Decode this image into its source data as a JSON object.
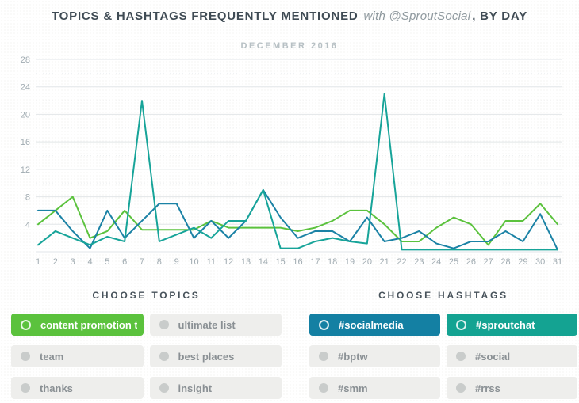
{
  "title": {
    "main": "TOPICS & HASHTAGS FREQUENTLY MENTIONED",
    "highlight": "with @SproutSocial",
    "suffix": ", BY DAY"
  },
  "subtitle": "DECEMBER 2016",
  "chart_data": {
    "type": "line",
    "title": "Topics & hashtags frequently mentioned with @SproutSocial, by day",
    "subtitle": "DECEMBER 2016",
    "x": [
      1,
      2,
      3,
      4,
      5,
      6,
      7,
      8,
      9,
      10,
      11,
      12,
      13,
      14,
      15,
      16,
      17,
      18,
      19,
      20,
      21,
      22,
      23,
      24,
      25,
      26,
      27,
      28,
      29,
      30,
      31
    ],
    "xlabel": "",
    "ylabel": "",
    "ylim": [
      0,
      28
    ],
    "yticks": [
      4,
      8,
      12,
      16,
      20,
      24,
      28
    ],
    "minor_gridlines_every": 2,
    "grid": true,
    "legend_position": "none",
    "series": [
      {
        "name": "content promotion t..",
        "color": "#5bc23d",
        "values": [
          4,
          6,
          8,
          2,
          3,
          6,
          3.2,
          3.2,
          3.2,
          3.2,
          4.5,
          3.5,
          3.5,
          3.5,
          3.5,
          3,
          3.5,
          4.5,
          6,
          6,
          4,
          1.5,
          1.5,
          3.5,
          5,
          4,
          1,
          4.5,
          4.5,
          7,
          4
        ]
      },
      {
        "name": "#socialmedia",
        "color": "#1b82a5",
        "values": [
          6,
          6,
          3,
          0.5,
          6,
          2,
          4.5,
          7,
          7,
          2,
          4.5,
          2,
          4.5,
          9,
          5,
          2,
          3,
          3,
          1.5,
          5,
          1.5,
          2,
          3,
          1.2,
          0.5,
          1.5,
          1.5,
          3,
          1.5,
          5.5,
          0.3
        ]
      },
      {
        "name": "#sproutchat",
        "color": "#17a499",
        "values": [
          1,
          3,
          2,
          1,
          2.2,
          1.5,
          22,
          1.5,
          2.5,
          3.5,
          2,
          4.5,
          4.5,
          9,
          0.5,
          0.5,
          1.5,
          2,
          1.5,
          1.2,
          23,
          0.3,
          0.3,
          0.3,
          0.3,
          0.3,
          0.3,
          0.3,
          0.3,
          0.3,
          0.3
        ]
      }
    ]
  },
  "topics": {
    "heading": "CHOOSE TOPICS",
    "buttons": [
      {
        "label": "content promotion t..",
        "active": true,
        "color": "#5bc23d"
      },
      {
        "label": "ultimate list",
        "active": false,
        "color": ""
      },
      {
        "label": "team",
        "active": false,
        "color": ""
      },
      {
        "label": "best places",
        "active": false,
        "color": ""
      },
      {
        "label": "thanks",
        "active": false,
        "color": ""
      },
      {
        "label": "insight",
        "active": false,
        "color": ""
      }
    ]
  },
  "hashtags": {
    "heading": "CHOOSE HASHTAGS",
    "buttons": [
      {
        "label": "#socialmedia",
        "active": true,
        "color": "#1480a3"
      },
      {
        "label": "#sproutchat",
        "active": true,
        "color": "#14a392"
      },
      {
        "label": "#bptw",
        "active": false,
        "color": ""
      },
      {
        "label": "#social",
        "active": false,
        "color": ""
      },
      {
        "label": "#smm",
        "active": false,
        "color": ""
      },
      {
        "label": "#rrss",
        "active": false,
        "color": ""
      }
    ]
  },
  "colors": {
    "axis_label": "#a0abb1",
    "major_grid": "#e2e6e8",
    "minor_grid": "#eef1f2",
    "inactive_chip_bg": "#eeeeec",
    "inactive_chip_text": "#8a9094"
  }
}
